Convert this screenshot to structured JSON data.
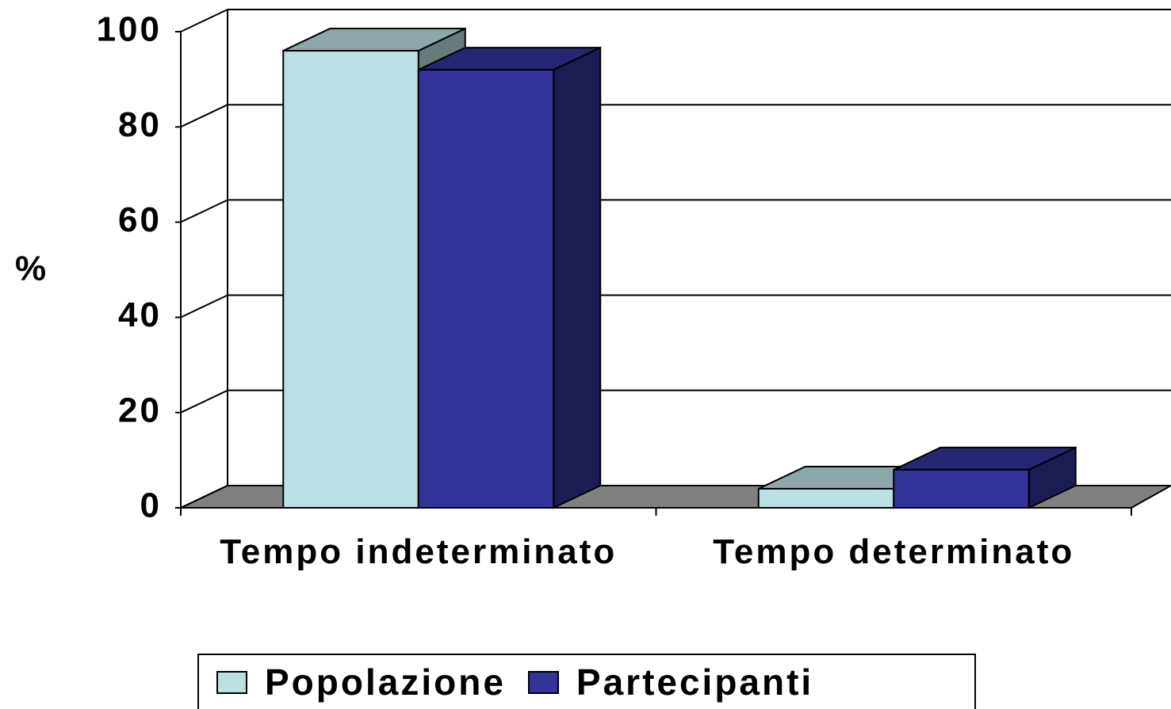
{
  "chart_data": {
    "type": "bar3d",
    "ylabel": "%",
    "categories": [
      "Tempo indeterminato",
      "Tempo determinato"
    ],
    "series": [
      {
        "name": "Popolazione",
        "color": "#bbe0e3",
        "values": [
          96,
          4
        ]
      },
      {
        "name": "Partecipanti",
        "color": "#333399",
        "values": [
          92,
          8
        ]
      }
    ],
    "ylim": [
      0,
      100
    ],
    "yticks": [
      0,
      20,
      40,
      60,
      80,
      100
    ],
    "grid": true,
    "legend": "bottom"
  }
}
